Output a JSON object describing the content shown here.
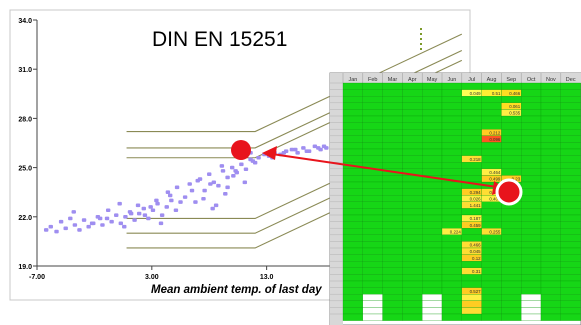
{
  "chart_data": {
    "type": "scatter",
    "title": "DIN EN 15251",
    "xlabel": "Mean ambient temp. of last day",
    "xlim": [
      -7,
      20
    ],
    "ylim": [
      19,
      34
    ],
    "x_ticks": [
      -7,
      3,
      13
    ],
    "x_tick_labels": [
      "-7.00",
      "3.00",
      "13.0"
    ],
    "y_ticks": [
      19,
      22,
      25,
      28,
      31,
      34
    ],
    "y_tick_labels": [
      "19.0",
      "22.0",
      "25.0",
      "28.0",
      "31.0",
      "34.0"
    ],
    "comfort_lines": [
      {
        "y_flat": 27.2,
        "x_break": 12,
        "slope": 0.33
      },
      {
        "y_flat": 26.2,
        "x_break": 12,
        "slope": 0.33
      },
      {
        "y_flat": 25.6,
        "x_break": 12,
        "slope": 0.33
      },
      {
        "y_flat": 21.9,
        "x_break": 12,
        "slope": 0.33
      },
      {
        "y_flat": 21.0,
        "x_break": 12,
        "slope": 0.33
      },
      {
        "y_flat": 20.1,
        "x_break": 12,
        "slope": 0.33
      }
    ],
    "points": {
      "x": [
        -6.2,
        -5.8,
        -5.3,
        -4.9,
        -4.5,
        -4.1,
        -3.7,
        -3.3,
        -2.9,
        -2.5,
        -2.1,
        -1.7,
        -1.3,
        -0.9,
        -0.5,
        -0.1,
        0.3,
        0.7,
        1.1,
        1.5,
        1.9,
        2.3,
        2.7,
        3.1,
        3.5,
        3.9,
        4.3,
        4.7,
        5.1,
        5.5,
        -3.8,
        -2.2,
        -0.8,
        0.6,
        1.8,
        2.9,
        3.8,
        4.6,
        -1.5,
        0.2,
        1.2,
        2.4,
        3.4,
        4.4,
        5.2,
        5.9,
        6.3,
        6.8,
        7.2,
        7.6,
        8.0,
        8.4,
        8.8,
        9.2,
        9.6,
        10.0,
        10.4,
        10.8,
        11.2,
        11.6,
        12.0,
        6.5,
        7.0,
        7.5,
        8.1,
        8.6,
        9.1,
        9.6,
        10.1,
        10.6,
        11.1,
        11.6,
        8.3,
        9.4,
        10.3,
        11.0,
        11.8,
        12.3,
        12.8,
        13.2,
        13.7,
        14.2,
        14.7,
        15.2,
        15.7,
        16.2,
        16.7,
        17.2,
        17.7,
        18.2,
        13.5,
        14.5,
        15.5,
        16.5,
        17.5,
        18.0
      ],
      "y": [
        21.2,
        21.4,
        21.1,
        21.7,
        21.3,
        21.9,
        21.5,
        21.2,
        21.8,
        21.4,
        21.6,
        22.0,
        21.5,
        21.9,
        21.7,
        22.1,
        21.6,
        22.0,
        22.3,
        21.8,
        22.2,
        22.5,
        21.9,
        22.4,
        22.8,
        22.1,
        22.6,
        23.0,
        22.4,
        22.9,
        22.3,
        21.6,
        22.4,
        21.4,
        22.7,
        22.6,
        21.6,
        23.3,
        21.9,
        22.8,
        22.2,
        22.1,
        23.0,
        23.5,
        23.8,
        23.2,
        24.0,
        22.9,
        24.3,
        23.6,
        24.6,
        24.1,
        23.9,
        24.8,
        24.4,
        25.0,
        24.7,
        25.2,
        24.9,
        25.5,
        25.3,
        23.6,
        24.2,
        23.1,
        24.0,
        22.7,
        25.1,
        23.8,
        24.5,
        25.8,
        24.1,
        25.9,
        22.5,
        23.4,
        24.8,
        25.7,
        25.4,
        25.6,
        25.8,
        25.7,
        25.9,
        25.8,
        26.0,
        26.1,
        25.9,
        26.2,
        26.0,
        26.3,
        26.1,
        26.2,
        25.6,
        25.9,
        26.1,
        26.0,
        26.2,
        26.3
      ],
      "color": "#9f8ef0"
    },
    "marker_color": "#e8141c",
    "arrow_color": "#e8141c"
  },
  "table": {
    "columns": [
      "Jan",
      "Feb",
      "Mar",
      "Apr",
      "May",
      "Jun",
      "Jul",
      "Aug",
      "Sep",
      "Oct",
      "Nov",
      "Dec"
    ],
    "cell_color": "#16d616",
    "highlight_values": [
      "0.049",
      "0.51",
      "0.466",
      "0.061",
      "0.535",
      "0.212",
      "0.096",
      "0.218",
      "0.464",
      "0.499",
      "0.23",
      "0.294",
      "0.256",
      "0.026",
      "0.406",
      "1.441",
      "0.187",
      "0.459",
      "0.224",
      "0.255",
      "0.466",
      "0.045",
      "0.12",
      "0.31",
      "0.527"
    ]
  }
}
